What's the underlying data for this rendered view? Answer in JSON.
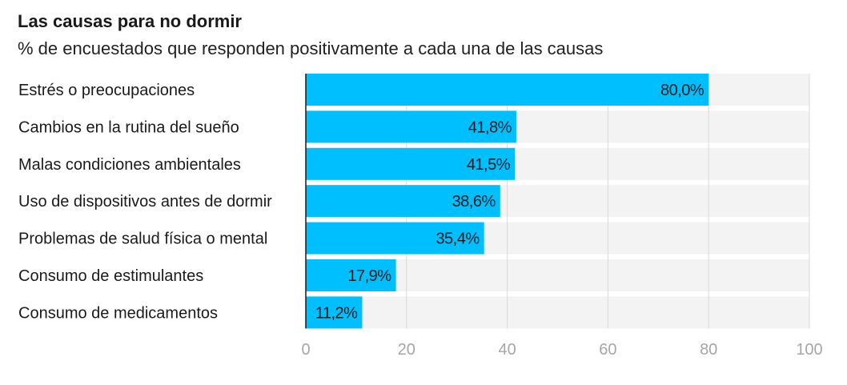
{
  "title": "Las causas para no dormir",
  "subtitle": "% de encuestados que responden positivamente a cada una de las causas",
  "colors": {
    "bar": "#00bfff",
    "track": "#f3f3f3",
    "grid": "#d9d9d9",
    "axis": "#1a1a1a",
    "tick": "#a6a6a6"
  },
  "chart_data": {
    "type": "bar",
    "orientation": "horizontal",
    "categories": [
      "Estrés o preocupaciones",
      "Cambios en la rutina del sueño",
      "Malas condiciones ambientales",
      "Uso de dispositivos antes de dormir",
      "Problemas de salud física o mental",
      "Consumo de estimulantes",
      "Consumo de medicamentos"
    ],
    "values": [
      80.0,
      41.8,
      41.5,
      38.6,
      35.4,
      17.9,
      11.2
    ],
    "value_labels": [
      "80,0%",
      "41,8%",
      "41,5%",
      "38,6%",
      "35,4%",
      "17,9%",
      "11,2%"
    ],
    "xlim": [
      0,
      100
    ],
    "xticks": [
      0,
      20,
      40,
      60,
      80,
      100
    ],
    "xtick_labels": [
      "0",
      "20",
      "40",
      "60",
      "80",
      "100"
    ],
    "grid": true
  }
}
